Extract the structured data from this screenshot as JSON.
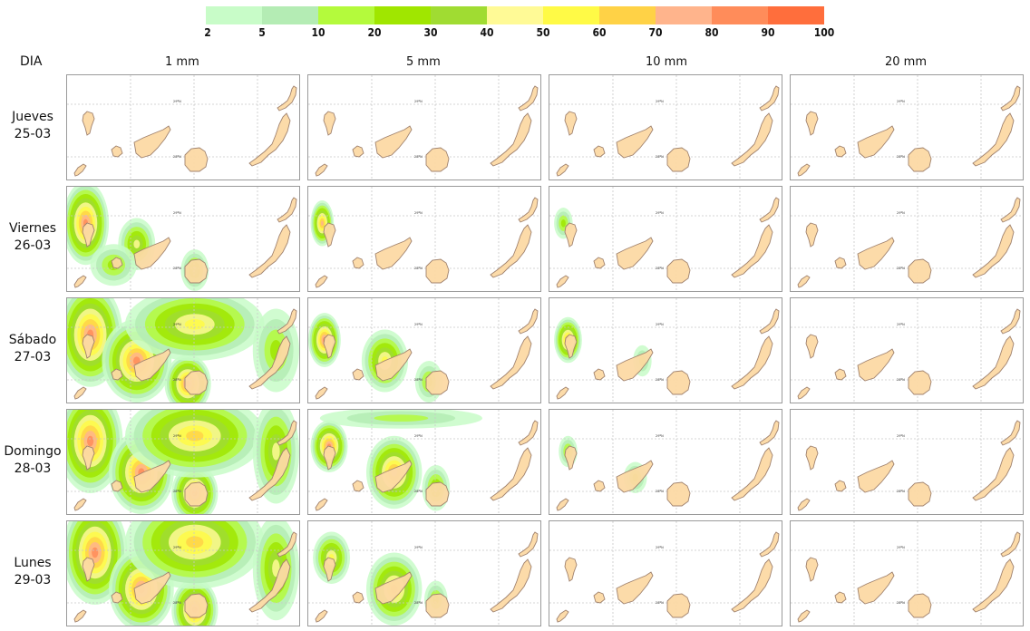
{
  "legend": {
    "colors": [
      "#c8fcc8",
      "#b4ecb4",
      "#b4fa3c",
      "#a0e600",
      "#a0dc32",
      "#fffa96",
      "#fffa46",
      "#ffd246",
      "#ffb48c",
      "#ff8c5a",
      "#ff6e3c"
    ],
    "ticks": [
      "2",
      "5",
      "10",
      "20",
      "30",
      "40",
      "50",
      "60",
      "70",
      "80",
      "90",
      "100"
    ]
  },
  "header": {
    "corner": "DIA",
    "columns": [
      "1 mm",
      "5 mm",
      "10 mm",
      "20 mm"
    ]
  },
  "rows": [
    {
      "day": "Jueves",
      "date": "25-03"
    },
    {
      "day": "Viernes",
      "date": "26-03"
    },
    {
      "day": "Sábado",
      "date": "27-03"
    },
    {
      "day": "Domingo",
      "date": "28-03"
    },
    {
      "day": "Lunes",
      "date": "29-03"
    }
  ],
  "map": {
    "land_color": "#fcd9a4",
    "coast_color": "#a0826e",
    "grid_label_top": "29ºN",
    "grid_label_bottom": "28ºN"
  },
  "probability_blobs": {
    "1-0": [
      [
        0.08,
        0.35,
        0.1,
        0.4,
        0.9
      ],
      [
        0.3,
        0.55,
        0.08,
        0.25,
        0.5
      ],
      [
        0.55,
        0.8,
        0.06,
        0.2,
        0.45
      ],
      [
        0.2,
        0.75,
        0.1,
        0.2,
        0.35
      ]
    ],
    "1-1": [
      [
        0.06,
        0.35,
        0.05,
        0.22,
        0.85
      ]
    ],
    "1-2": [
      [
        0.06,
        0.35,
        0.04,
        0.15,
        0.4
      ]
    ],
    "2-0": [
      [
        0.1,
        0.35,
        0.14,
        0.5,
        0.95
      ],
      [
        0.3,
        0.6,
        0.15,
        0.4,
        0.9
      ],
      [
        0.52,
        0.82,
        0.1,
        0.28,
        0.95
      ],
      [
        0.55,
        0.25,
        0.3,
        0.35,
        0.6
      ],
      [
        0.9,
        0.5,
        0.1,
        0.4,
        0.4
      ]
    ],
    "2-1": [
      [
        0.07,
        0.4,
        0.07,
        0.26,
        0.95
      ],
      [
        0.33,
        0.6,
        0.1,
        0.3,
        0.6
      ],
      [
        0.52,
        0.8,
        0.06,
        0.2,
        0.4
      ]
    ],
    "2-2": [
      [
        0.08,
        0.4,
        0.06,
        0.22,
        0.8
      ],
      [
        0.4,
        0.6,
        0.04,
        0.15,
        0.3
      ]
    ],
    "3-0": [
      [
        0.1,
        0.3,
        0.14,
        0.5,
        0.95
      ],
      [
        0.32,
        0.6,
        0.14,
        0.4,
        0.95
      ],
      [
        0.55,
        0.8,
        0.1,
        0.28,
        0.95
      ],
      [
        0.55,
        0.25,
        0.3,
        0.4,
        0.75
      ],
      [
        0.9,
        0.4,
        0.1,
        0.5,
        0.5
      ]
    ],
    "3-1": [
      [
        0.09,
        0.35,
        0.08,
        0.25,
        0.9
      ],
      [
        0.37,
        0.6,
        0.12,
        0.35,
        0.85
      ],
      [
        0.55,
        0.75,
        0.06,
        0.22,
        0.45
      ],
      [
        0.4,
        0.08,
        0.35,
        0.1,
        0.25
      ]
    ],
    "3-2": [
      [
        0.08,
        0.4,
        0.04,
        0.15,
        0.35
      ],
      [
        0.37,
        0.65,
        0.05,
        0.15,
        0.35
      ]
    ],
    "4-0": [
      [
        0.12,
        0.3,
        0.14,
        0.5,
        0.9
      ],
      [
        0.32,
        0.65,
        0.14,
        0.4,
        0.95
      ],
      [
        0.55,
        0.85,
        0.1,
        0.3,
        0.9
      ],
      [
        0.55,
        0.2,
        0.3,
        0.45,
        0.7
      ],
      [
        0.9,
        0.45,
        0.1,
        0.5,
        0.5
      ]
    ],
    "4-1": [
      [
        0.1,
        0.35,
        0.08,
        0.25,
        0.6
      ],
      [
        0.37,
        0.65,
        0.12,
        0.35,
        0.75
      ],
      [
        0.55,
        0.75,
        0.05,
        0.18,
        0.35
      ]
    ]
  }
}
